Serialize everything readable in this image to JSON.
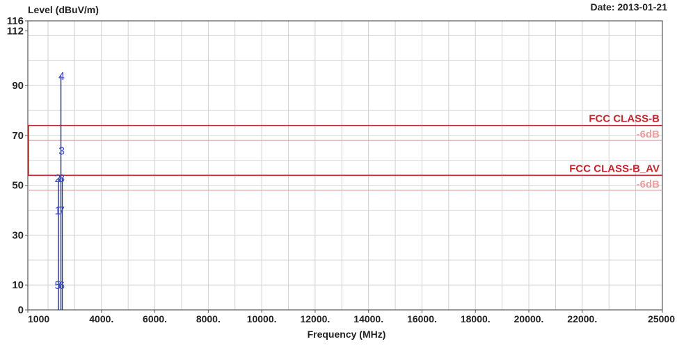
{
  "header": {
    "ylabel": "Level (dBuV/m)",
    "date": "Date: 2013-01-21"
  },
  "chart_data": {
    "type": "line",
    "ylabel": "Level (dBuV/m)",
    "xlabel": "Frequency (MHz)",
    "xlim": [
      1000,
      25000
    ],
    "ylim": [
      0,
      116
    ],
    "x_ticks": [
      {
        "value": 1000,
        "label": "1000"
      },
      {
        "value": 4000,
        "label": "4000."
      },
      {
        "value": 6000,
        "label": "6000."
      },
      {
        "value": 8000,
        "label": "8000."
      },
      {
        "value": 10000,
        "label": "10000."
      },
      {
        "value": 12000,
        "label": "12000."
      },
      {
        "value": 14000,
        "label": "14000."
      },
      {
        "value": 16000,
        "label": "16000."
      },
      {
        "value": 18000,
        "label": "18000."
      },
      {
        "value": 20000,
        "label": "20000."
      },
      {
        "value": 22000,
        "label": "22000."
      },
      {
        "value": 25000,
        "label": "25000"
      }
    ],
    "y_ticks": [
      {
        "value": 0,
        "label": "0"
      },
      {
        "value": 10,
        "label": "10"
      },
      {
        "value": 30,
        "label": "30"
      },
      {
        "value": 50,
        "label": "50"
      },
      {
        "value": 70,
        "label": "70"
      },
      {
        "value": 90,
        "label": "90"
      },
      {
        "value": 112,
        "label": "112"
      },
      {
        "value": 116,
        "label": "116"
      }
    ],
    "grid": true,
    "limit_lines": [
      {
        "label": "FCC CLASS-B",
        "value": 74,
        "color": "#c0282d"
      },
      {
        "label": "-6dB",
        "value": 68,
        "color": "#e8a0a0"
      },
      {
        "label": "FCC CLASS-B_AV",
        "value": 54,
        "color": "#c0282d"
      },
      {
        "label": "-6dB",
        "value": 48,
        "color": "#e8a0a0"
      }
    ],
    "markers": [
      {
        "label": "1",
        "x": 2390,
        "y": 40
      },
      {
        "label": "2",
        "x": 2390,
        "y": 53
      },
      {
        "label": "3",
        "x": 2483.5,
        "y": 64
      },
      {
        "label": "4",
        "x": 2483.5,
        "y": 94
      },
      {
        "label": "5",
        "x": 2390,
        "y": 10
      },
      {
        "label": "6",
        "x": 2483.5,
        "y": 10
      },
      {
        "label": "7",
        "x": 2483.5,
        "y": 40
      },
      {
        "label": "8",
        "x": 2483.5,
        "y": 53
      }
    ],
    "trace_color": "#1f2a9c",
    "marker_color": "#3a46d6"
  }
}
